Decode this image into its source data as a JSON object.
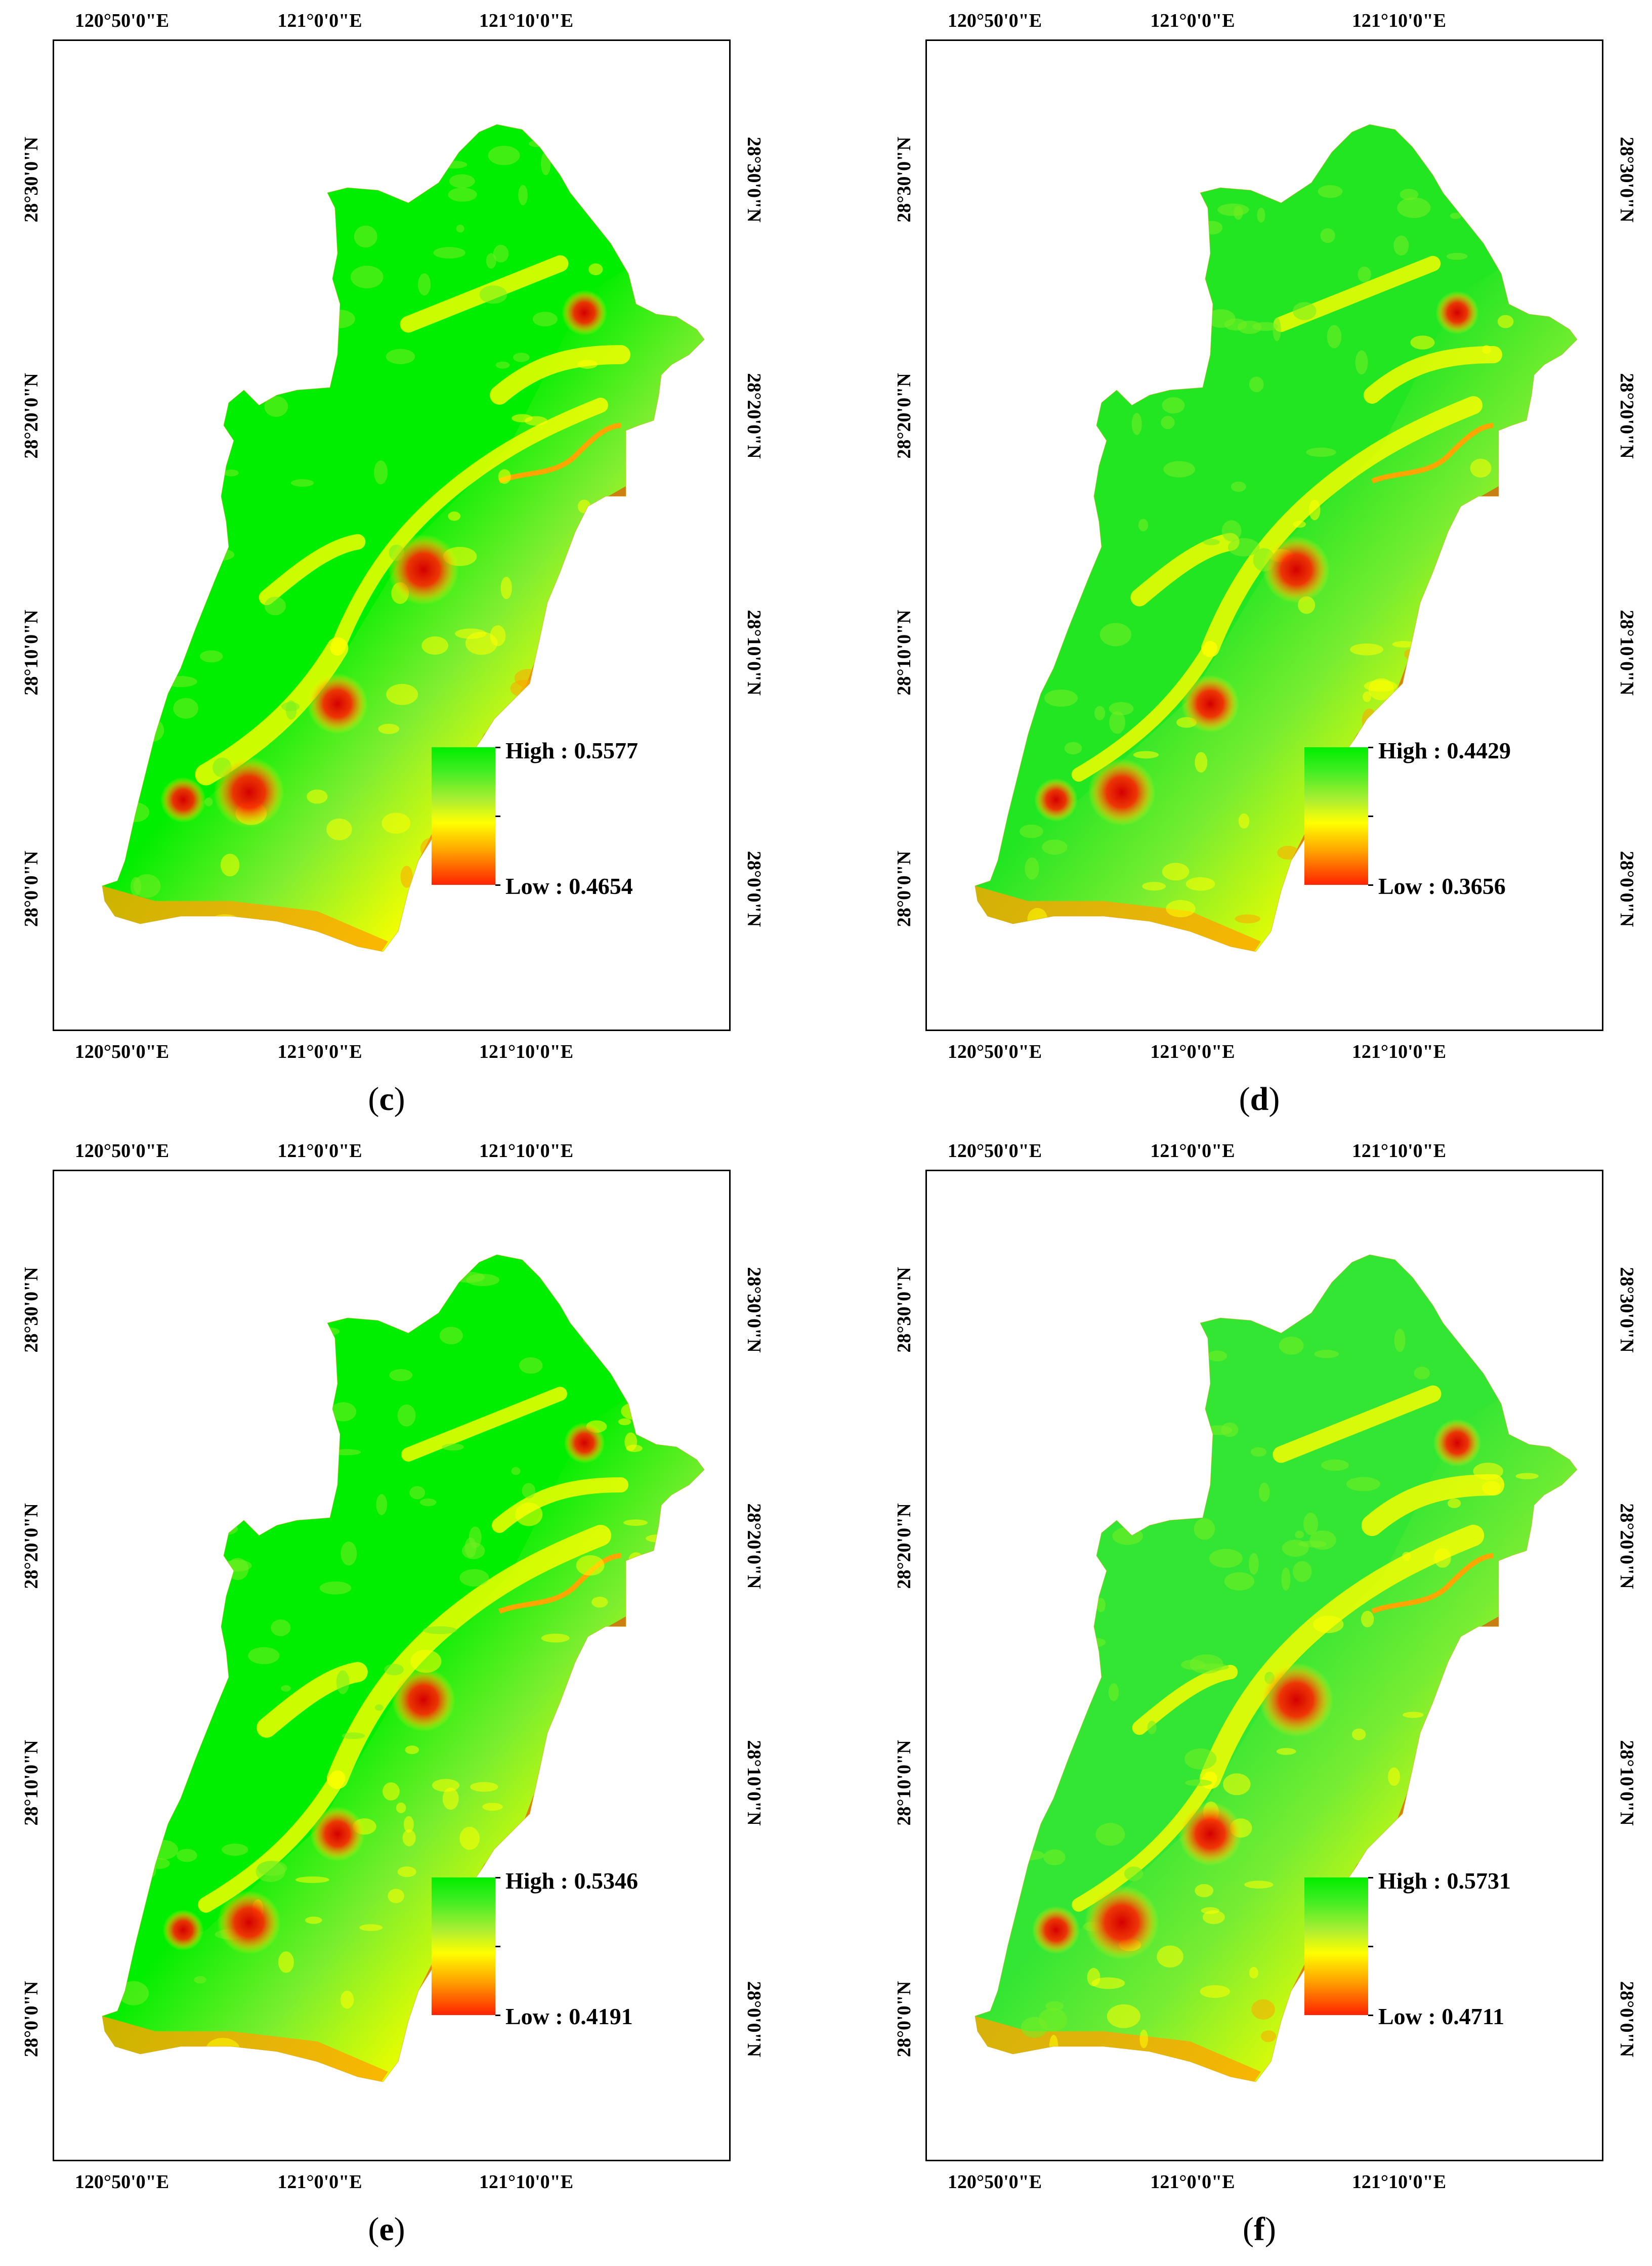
{
  "colors": {
    "high": "#00ee00",
    "mid_green": "#66ee22",
    "yellow": "#ffff00",
    "orange": "#ffa500",
    "low": "#ff2200",
    "urban": "#d40000"
  },
  "axes": {
    "lon_labels": [
      "120°50'0\"E",
      "121°0'0\"E",
      "121°10'0\"E"
    ],
    "lat_labels": [
      "28°30'0\"N",
      "28°20'0\"N",
      "28°10'0\"N",
      "28°0'0\"N"
    ]
  },
  "panels": [
    {
      "letter": "c",
      "legend": {
        "high": "High : 0.5577",
        "low": "Low : 0.4654"
      }
    },
    {
      "letter": "d",
      "legend": {
        "high": "High : 0.4429",
        "low": "Low : 0.3656"
      }
    },
    {
      "letter": "e",
      "legend": {
        "high": "High : 0.5346",
        "low": "Low : 0.4191"
      }
    },
    {
      "letter": "f",
      "legend": {
        "high": "High : 0.5731",
        "low": "Low : 0.4711"
      }
    }
  ]
}
